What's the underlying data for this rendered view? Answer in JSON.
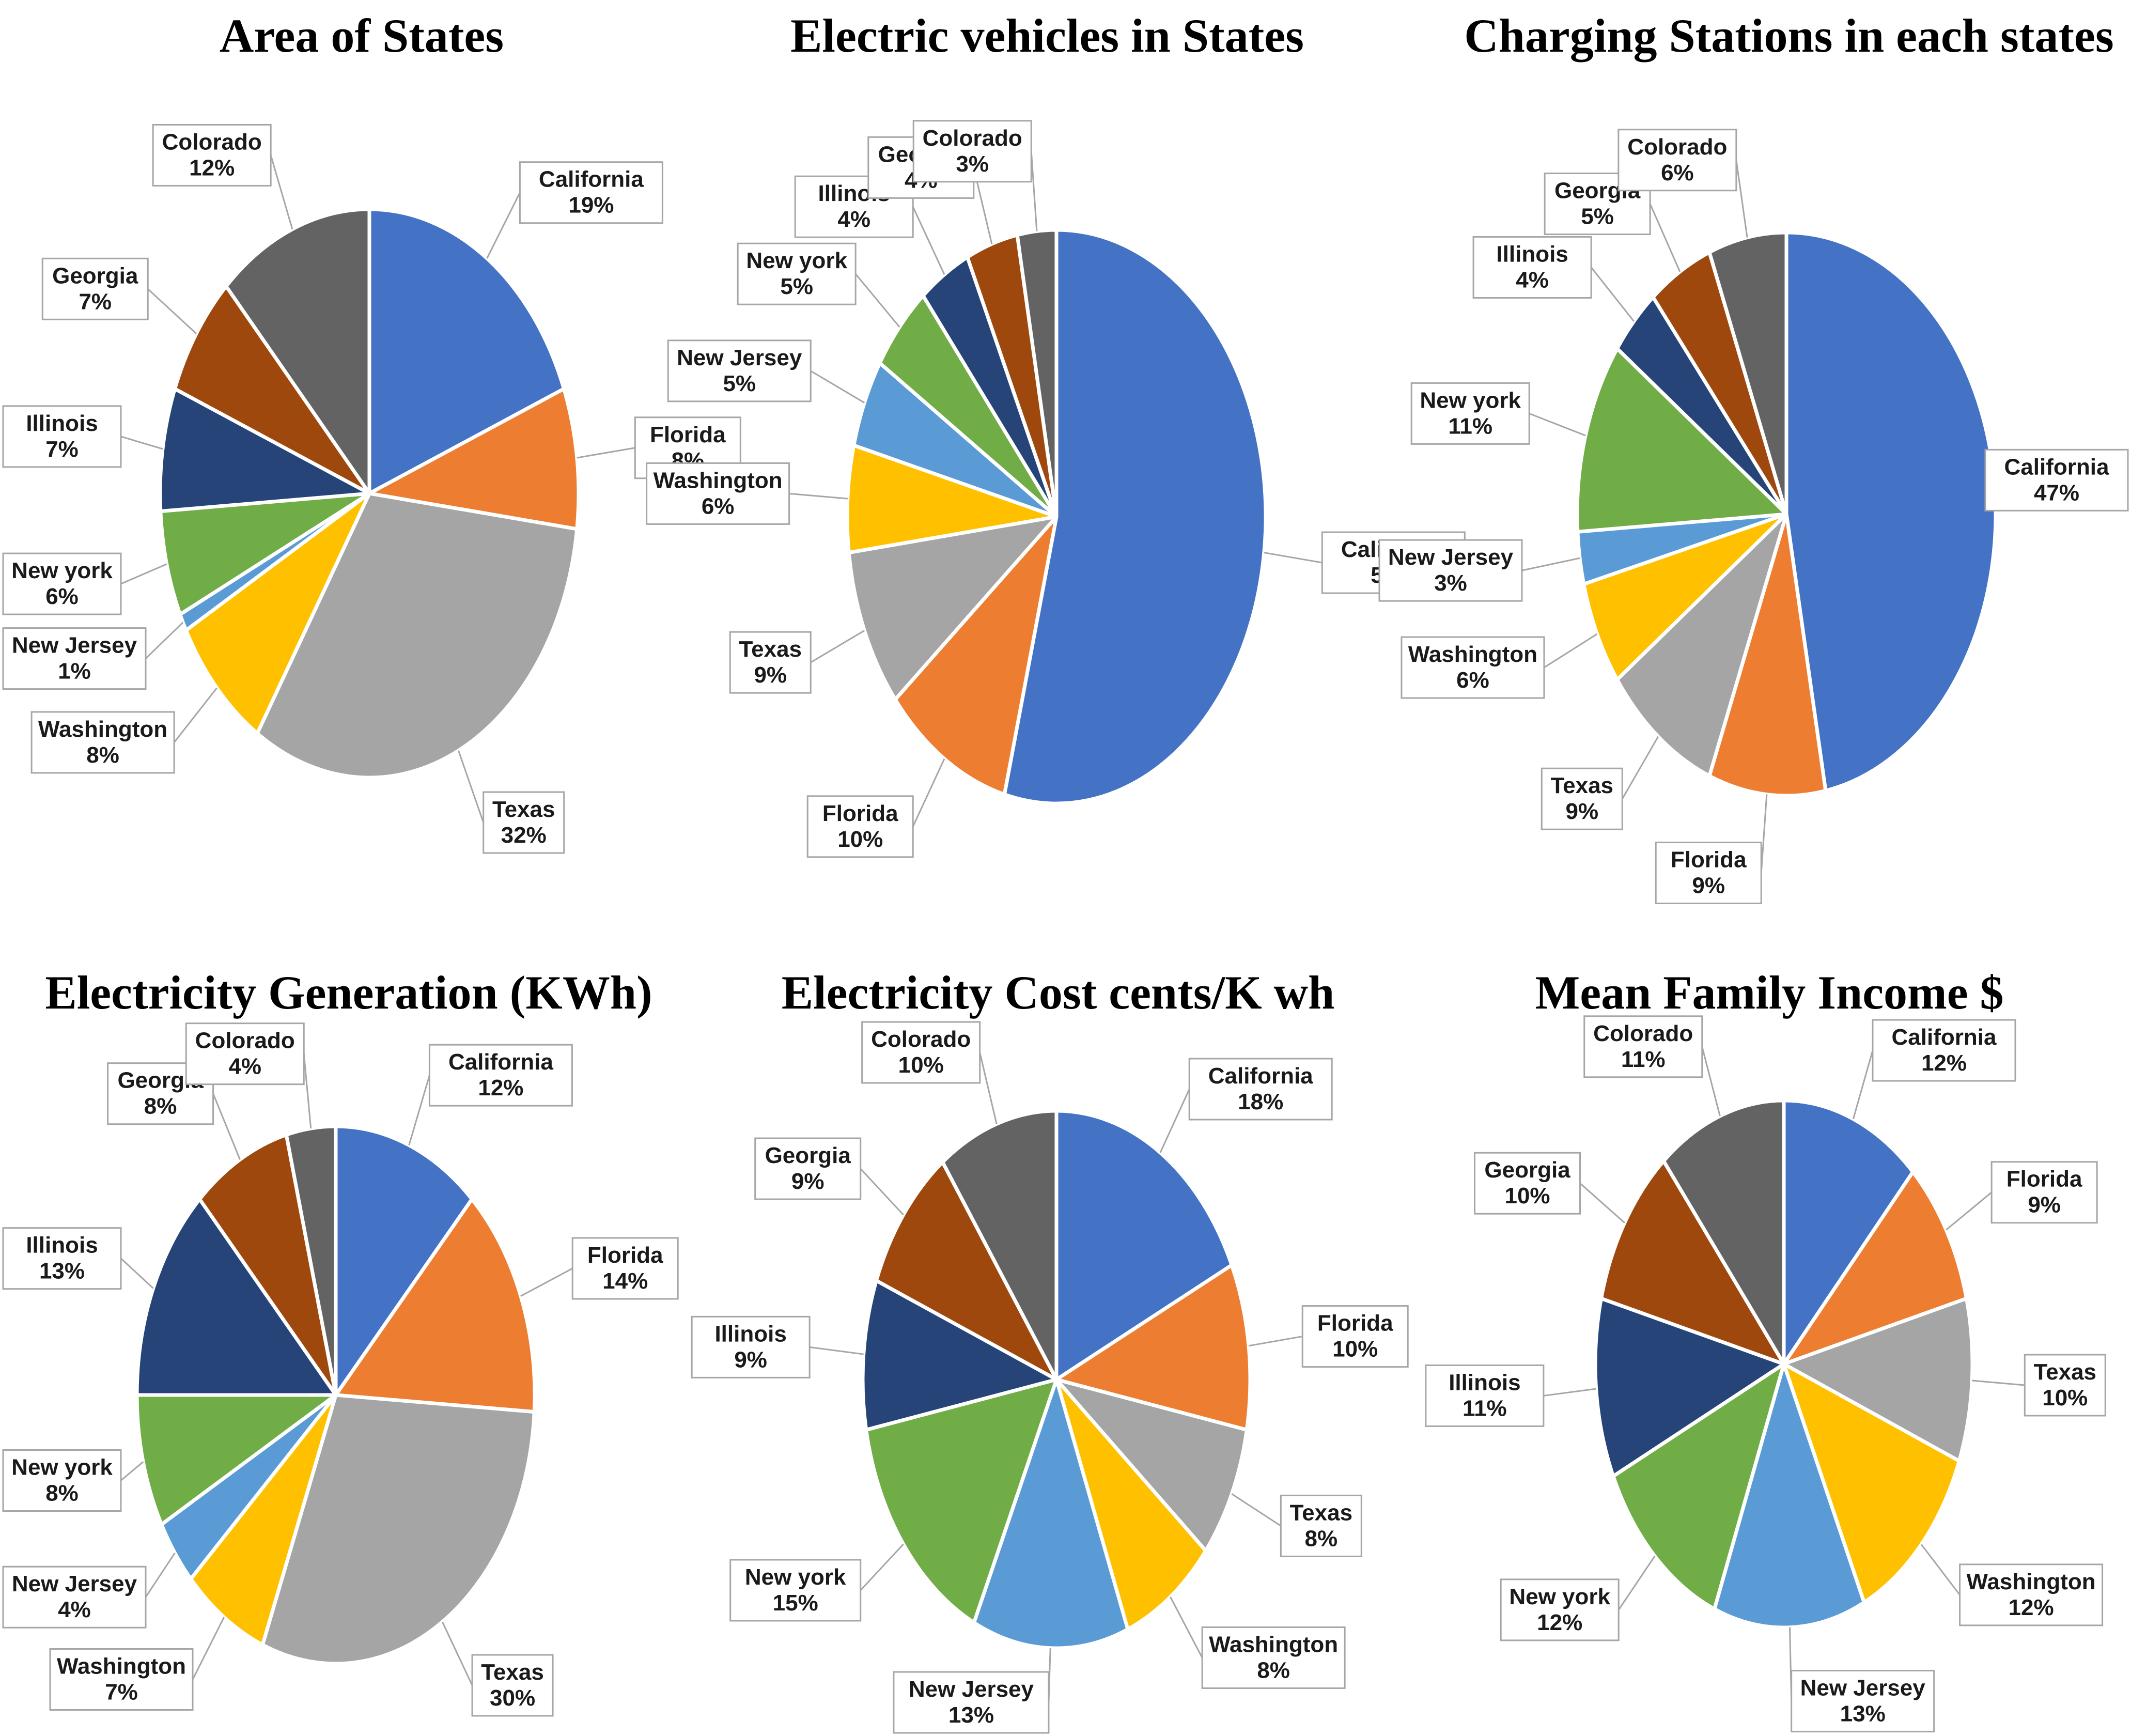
{
  "colors": {
    "California": "#4472C4",
    "Florida": "#ED7D31",
    "Texas": "#A5A5A5",
    "Washington": "#FFC000",
    "New Jersey": "#5B9BD5",
    "New york": "#70AD47",
    "Illinois": "#264478",
    "Georgia": "#9E480E",
    "Colorado": "#636363"
  },
  "chart_data": [
    {
      "type": "pie",
      "title": "Area of States",
      "slices": [
        {
          "label": "California",
          "display": "California",
          "pct": "19%",
          "value": 19
        },
        {
          "label": "Florida",
          "display": "Florida",
          "pct": "8%",
          "value": 8
        },
        {
          "label": "Texas",
          "display": "Texas",
          "pct": "32%",
          "value": 32
        },
        {
          "label": "Washington",
          "display": "Washington",
          "pct": "8%",
          "value": 8
        },
        {
          "label": "New Jersey",
          "display": "New Jersey",
          "pct": "1%",
          "value": 1
        },
        {
          "label": "New york",
          "display": "New york",
          "pct": "6%",
          "value": 6
        },
        {
          "label": "Illinois",
          "display": "Illinois",
          "pct": "7%",
          "value": 7
        },
        {
          "label": "Georgia",
          "display": "Georgia",
          "pct": "7%",
          "value": 7
        },
        {
          "label": "Colorado",
          "display": "Colorado",
          "pct": "12%",
          "value": 12
        }
      ]
    },
    {
      "type": "pie",
      "title": "Electric vehicles in States",
      "slices": [
        {
          "label": "California",
          "display": "California",
          "pct": "54%",
          "value": 54
        },
        {
          "label": "Florida",
          "display": "Florida",
          "pct": "10%",
          "value": 10
        },
        {
          "label": "Texas",
          "display": "Texas",
          "pct": "9%",
          "value": 9
        },
        {
          "label": "Washington",
          "display": "Washington",
          "pct": "6%",
          "value": 6
        },
        {
          "label": "New Jersey",
          "display": "New Jersey",
          "pct": "5%",
          "value": 5
        },
        {
          "label": "New york",
          "display": "New york",
          "pct": "5%",
          "value": 5
        },
        {
          "label": "Illinois",
          "display": "Illinois",
          "pct": "4%",
          "value": 4
        },
        {
          "label": "Georgia",
          "display": "Georgia",
          "pct": "4%",
          "value": 4
        },
        {
          "label": "Colorado",
          "display": "Colorado",
          "pct": "3%",
          "value": 3
        }
      ]
    },
    {
      "type": "pie",
      "title": "Charging  Stations in each states",
      "slices": [
        {
          "label": "California",
          "display": "California",
          "pct": "47%",
          "value": 47
        },
        {
          "label": "Florida",
          "display": "Florida",
          "pct": "9%",
          "value": 9
        },
        {
          "label": "Texas",
          "display": "Texas",
          "pct": "9%",
          "value": 9
        },
        {
          "label": "Washington",
          "display": "Washington",
          "pct": "6%",
          "value": 6
        },
        {
          "label": "New Jersey",
          "display": "New Jersey",
          "pct": "3%",
          "value": 3
        },
        {
          "label": "New york",
          "display": "New york",
          "pct": "11%",
          "value": 11
        },
        {
          "label": "Illinois",
          "display": "Illinois",
          "pct": "4%",
          "value": 4
        },
        {
          "label": "Georgia",
          "display": "Georgia",
          "pct": "5%",
          "value": 5
        },
        {
          "label": "Colorado",
          "display": "Colorado",
          "pct": "6%",
          "value": 6
        }
      ]
    },
    {
      "type": "pie",
      "title": "Electricity  Generation  (KWh)",
      "slices": [
        {
          "label": "California",
          "display": "California",
          "pct": "12%",
          "value": 12
        },
        {
          "label": "Florida",
          "display": "Florida",
          "pct": "14%",
          "value": 14
        },
        {
          "label": "Texas",
          "display": "Texas",
          "pct": "30%",
          "value": 30
        },
        {
          "label": "Washington",
          "display": "Washington",
          "pct": "7%",
          "value": 7
        },
        {
          "label": "New Jersey",
          "display": "New Jersey",
          "pct": "4%",
          "value": 4
        },
        {
          "label": "New york",
          "display": "New york",
          "pct": "8%",
          "value": 8
        },
        {
          "label": "Illinois",
          "display": "Illinois",
          "pct": "13%",
          "value": 13
        },
        {
          "label": "Georgia",
          "display": "Georgia",
          "pct": "8%",
          "value": 8
        },
        {
          "label": "Colorado",
          "display": "Colorado",
          "pct": "4%",
          "value": 4
        }
      ]
    },
    {
      "type": "pie",
      "title": "Electricity  Cost  cents/K wh",
      "slices": [
        {
          "label": "California",
          "display": "California",
          "pct": "18%",
          "value": 18
        },
        {
          "label": "Florida",
          "display": "Florida",
          "pct": "10%",
          "value": 10
        },
        {
          "label": "Texas",
          "display": "Texas",
          "pct": "8%",
          "value": 8
        },
        {
          "label": "Washington",
          "display": "Washington",
          "pct": "8%",
          "value": 8
        },
        {
          "label": "New Jersey",
          "display": "New  Jersey",
          "pct": "13%",
          "value": 13
        },
        {
          "label": "New york",
          "display": "New  york",
          "pct": "15%",
          "value": 15
        },
        {
          "label": "Illinois",
          "display": "Illinois",
          "pct": "9%",
          "value": 9
        },
        {
          "label": "Georgia",
          "display": "Georgia",
          "pct": "9%",
          "value": 9
        },
        {
          "label": "Colorado",
          "display": "Colorado",
          "pct": "10%",
          "value": 10
        }
      ]
    },
    {
      "type": "pie",
      "title": "Mean  Family  Income  $",
      "slices": [
        {
          "label": "California",
          "display": "California",
          "pct": "12%",
          "value": 12
        },
        {
          "label": "Florida",
          "display": "Florida",
          "pct": "9%",
          "value": 9
        },
        {
          "label": "Texas",
          "display": "Texas",
          "pct": "10%",
          "value": 10
        },
        {
          "label": "Washington",
          "display": "Washington",
          "pct": "12%",
          "value": 12
        },
        {
          "label": "New Jersey",
          "display": "New Jersey",
          "pct": "13%",
          "value": 13
        },
        {
          "label": "New york",
          "display": "New york",
          "pct": "12%",
          "value": 12
        },
        {
          "label": "Illinois",
          "display": "Illinois",
          "pct": "11%",
          "value": 11
        },
        {
          "label": "Georgia",
          "display": "Georgia",
          "pct": "10%",
          "value": 10
        },
        {
          "label": "Colorado",
          "display": "Colorado",
          "pct": "11%",
          "value": 11
        }
      ]
    }
  ]
}
